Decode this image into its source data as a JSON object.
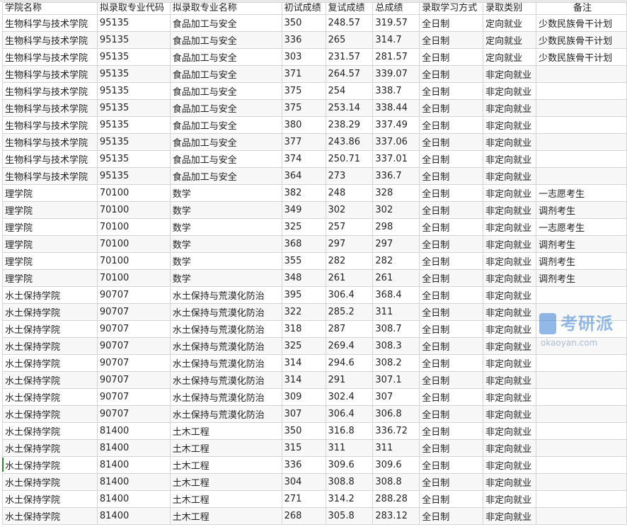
{
  "headers": [
    "学院名称",
    "拟录取专业代码",
    "拟录取专业名称",
    "初试成绩",
    "复试成绩",
    "总成绩",
    "录取学习方式",
    "录取类别",
    "备注"
  ],
  "rows": [
    [
      "生物科学与技术学院",
      "95135",
      "食品加工与安全",
      "350",
      "248.57",
      "319.57",
      "全日制",
      "定向就业",
      "少数民族骨干计划"
    ],
    [
      "生物科学与技术学院",
      "95135",
      "食品加工与安全",
      "336",
      "265",
      "314.7",
      "全日制",
      "定向就业",
      "少数民族骨干计划"
    ],
    [
      "生物科学与技术学院",
      "95135",
      "食品加工与安全",
      "303",
      "231.57",
      "281.57",
      "全日制",
      "定向就业",
      "少数民族骨干计划"
    ],
    [
      "生物科学与技术学院",
      "95135",
      "食品加工与安全",
      "371",
      "264.57",
      "339.07",
      "全日制",
      "非定向就业",
      ""
    ],
    [
      "生物科学与技术学院",
      "95135",
      "食品加工与安全",
      "375",
      "254",
      "338.7",
      "全日制",
      "非定向就业",
      ""
    ],
    [
      "生物科学与技术学院",
      "95135",
      "食品加工与安全",
      "375",
      "253.14",
      "338.44",
      "全日制",
      "非定向就业",
      ""
    ],
    [
      "生物科学与技术学院",
      "95135",
      "食品加工与安全",
      "380",
      "238.29",
      "337.49",
      "全日制",
      "非定向就业",
      ""
    ],
    [
      "生物科学与技术学院",
      "95135",
      "食品加工与安全",
      "377",
      "243.86",
      "337.06",
      "全日制",
      "非定向就业",
      ""
    ],
    [
      "生物科学与技术学院",
      "95135",
      "食品加工与安全",
      "374",
      "250.71",
      "337.01",
      "全日制",
      "非定向就业",
      ""
    ],
    [
      "生物科学与技术学院",
      "95135",
      "食品加工与安全",
      "364",
      "273",
      "336.7",
      "全日制",
      "非定向就业",
      ""
    ],
    [
      "理学院",
      "70100",
      "数学",
      "382",
      "248",
      "328",
      "全日制",
      "非定向就业",
      "一志愿考生"
    ],
    [
      "理学院",
      "70100",
      "数学",
      "349",
      "302",
      "302",
      "全日制",
      "非定向就业",
      "调剂考生"
    ],
    [
      "理学院",
      "70100",
      "数学",
      "325",
      "257",
      "298",
      "全日制",
      "非定向就业",
      "一志愿考生"
    ],
    [
      "理学院",
      "70100",
      "数学",
      "368",
      "297",
      "297",
      "全日制",
      "非定向就业",
      "调剂考生"
    ],
    [
      "理学院",
      "70100",
      "数学",
      "355",
      "282",
      "282",
      "全日制",
      "非定向就业",
      "调剂考生"
    ],
    [
      "理学院",
      "70100",
      "数学",
      "348",
      "261",
      "261",
      "全日制",
      "非定向就业",
      "调剂考生"
    ],
    [
      "水土保持学院",
      "90707",
      "水土保持与荒漠化防治",
      "395",
      "306.4",
      "368.4",
      "全日制",
      "非定向就业",
      ""
    ],
    [
      "水土保持学院",
      "90707",
      "水土保持与荒漠化防治",
      "322",
      "285.2",
      "311",
      "全日制",
      "非定向就业",
      ""
    ],
    [
      "水土保持学院",
      "90707",
      "水土保持与荒漠化防治",
      "318",
      "287",
      "308.7",
      "全日制",
      "非定向就业",
      ""
    ],
    [
      "水土保持学院",
      "90707",
      "水土保持与荒漠化防治",
      "325",
      "269.4",
      "308.3",
      "全日制",
      "非定向就业",
      ""
    ],
    [
      "水土保持学院",
      "90707",
      "水土保持与荒漠化防治",
      "314",
      "294.6",
      "308.2",
      "全日制",
      "非定向就业",
      ""
    ],
    [
      "水土保持学院",
      "90707",
      "水土保持与荒漠化防治",
      "314",
      "291",
      "307.1",
      "全日制",
      "非定向就业",
      ""
    ],
    [
      "水土保持学院",
      "90707",
      "水土保持与荒漠化防治",
      "309",
      "302.4",
      "307",
      "全日制",
      "非定向就业",
      ""
    ],
    [
      "水土保持学院",
      "90707",
      "水土保持与荒漠化防治",
      "307",
      "306.4",
      "306.8",
      "全日制",
      "非定向就业",
      ""
    ],
    [
      "水土保持学院",
      "81400",
      "土木工程",
      "350",
      "316.8",
      "336.72",
      "全日制",
      "非定向就业",
      ""
    ],
    [
      "水土保持学院",
      "81400",
      "土木工程",
      "315",
      "311",
      "311",
      "全日制",
      "非定向就业",
      ""
    ],
    [
      "水土保持学院",
      "81400",
      "土木工程",
      "336",
      "309.6",
      "309.6",
      "全日制",
      "非定向就业",
      ""
    ],
    [
      "水土保持学院",
      "81400",
      "土木工程",
      "304",
      "308.8",
      "308.8",
      "全日制",
      "非定向就业",
      ""
    ],
    [
      "水土保持学院",
      "81400",
      "土木工程",
      "271",
      "314.2",
      "288.28",
      "全日制",
      "非定向就业",
      ""
    ],
    [
      "水土保持学院",
      "81400",
      "土木工程",
      "268",
      "305.8",
      "283.12",
      "全日制",
      "非定向就业",
      ""
    ]
  ],
  "watermark": {
    "brand": "考研派",
    "domain": "okaoyan.com",
    "color": "#3a7fd5"
  }
}
